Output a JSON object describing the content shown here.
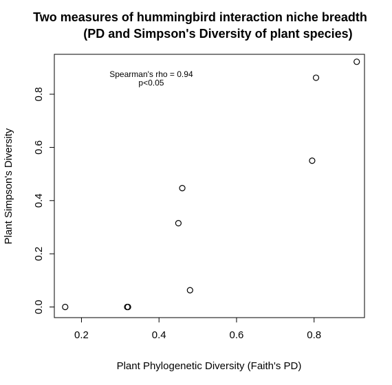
{
  "chart_data": {
    "type": "scatter",
    "title_lines": [
      "Two measures of hummingbird interaction niche breadth",
      "(PD and Simpson's Diversity of plant species)"
    ],
    "xlabel": "Plant Phylogenetic Diversity (Faith's PD)",
    "ylabel": "Plant Simpson's Diversity",
    "xlim": [
      0.13,
      0.93
    ],
    "ylim": [
      -0.04,
      0.95
    ],
    "xticks": [
      {
        "value": 0.2,
        "label": "0.2"
      },
      {
        "value": 0.4,
        "label": "0.4"
      },
      {
        "value": 0.6,
        "label": "0.6"
      },
      {
        "value": 0.8,
        "label": "0.8"
      }
    ],
    "yticks": [
      {
        "value": 0.0,
        "label": "0.0"
      },
      {
        "value": 0.2,
        "label": "0.2"
      },
      {
        "value": 0.4,
        "label": "0.4"
      },
      {
        "value": 0.6,
        "label": "0.6"
      },
      {
        "value": 0.8,
        "label": "0.8"
      }
    ],
    "points": [
      {
        "x": 0.158,
        "y": 0.0
      },
      {
        "x": 0.318,
        "y": 0.0
      },
      {
        "x": 0.32,
        "y": 0.0
      },
      {
        "x": 0.45,
        "y": 0.315
      },
      {
        "x": 0.46,
        "y": 0.447
      },
      {
        "x": 0.48,
        "y": 0.063
      },
      {
        "x": 0.795,
        "y": 0.55
      },
      {
        "x": 0.805,
        "y": 0.862
      },
      {
        "x": 0.91,
        "y": 0.922
      }
    ],
    "annotations": [
      {
        "text": "Spearman's rho = 0.94",
        "x": 0.38,
        "y": 0.875
      },
      {
        "text": "p<0.05",
        "x": 0.38,
        "y": 0.843
      }
    ],
    "grid": false,
    "marker": "open-circle",
    "colors": {
      "points": "#000000",
      "axes": "#000000",
      "background": "#ffffff"
    }
  }
}
